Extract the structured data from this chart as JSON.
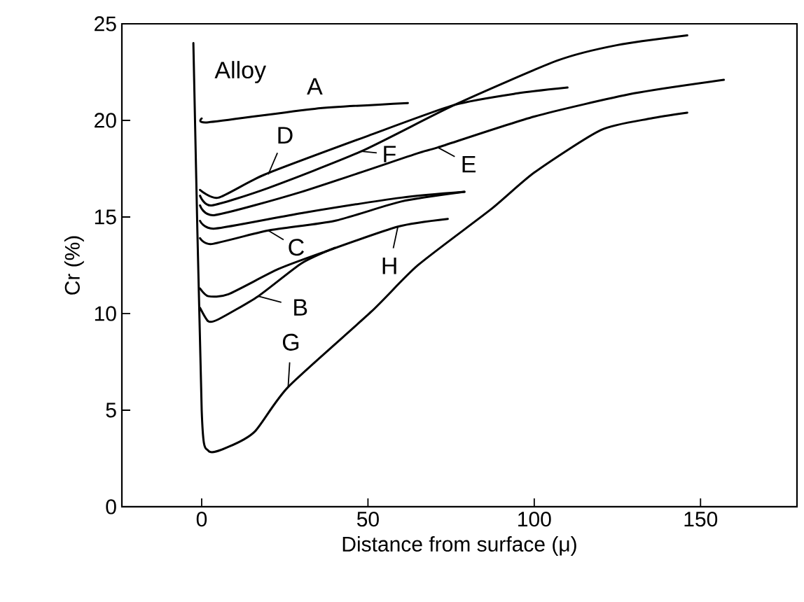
{
  "chart_data": {
    "type": "line",
    "xlabel": "Distance from surface (μ)",
    "ylabel": "Cr (%)",
    "xlim": [
      -24,
      179
    ],
    "ylim": [
      0,
      25
    ],
    "xticks": [
      0,
      50,
      100,
      150
    ],
    "yticks": [
      0,
      5,
      10,
      15,
      20,
      25
    ],
    "marker": "none",
    "line_style": "solid",
    "series": [
      {
        "color": "#000000",
        "x": [
          0,
          2,
          34,
          62
        ],
        "values": [
          20.1,
          19.9,
          20.6,
          20.9
        ]
      },
      {
        "color": "#000000",
        "x": [
          -0.5,
          5,
          19,
          50,
          76,
          95,
          110
        ],
        "values": [
          16.4,
          16.0,
          17.2,
          19.2,
          20.8,
          21.4,
          21.7
        ]
      },
      {
        "color": "#000000",
        "x": [
          -0.5,
          3,
          20,
          48,
          76,
          107,
          125,
          146
        ],
        "values": [
          16.1,
          15.6,
          16.5,
          18.4,
          20.8,
          23.1,
          23.9,
          24.4
        ]
      },
      {
        "color": "#000000",
        "x": [
          -0.5,
          4,
          30,
          65,
          71,
          100,
          130,
          157
        ],
        "values": [
          15.6,
          15.1,
          16.3,
          18.3,
          18.6,
          20.2,
          21.4,
          22.1
        ]
      },
      {
        "color": "#000000",
        "x": [
          -0.5,
          4,
          30,
          60,
          79
        ],
        "values": [
          14.8,
          14.4,
          15.2,
          16.0,
          16.3
        ]
      },
      {
        "color": "#000000",
        "x": [
          -0.5,
          3,
          20,
          40,
          60,
          79
        ],
        "values": [
          13.9,
          13.6,
          14.3,
          14.8,
          15.8,
          16.3
        ]
      },
      {
        "color": "#000000",
        "x": [
          -0.5,
          2,
          8,
          23,
          37,
          59,
          74
        ],
        "values": [
          11.3,
          10.9,
          11.0,
          12.3,
          13.2,
          14.5,
          14.9
        ]
      },
      {
        "color": "#000000",
        "x": [
          -0.5,
          2,
          5,
          17,
          30,
          40
        ],
        "values": [
          10.3,
          9.6,
          9.7,
          10.9,
          12.6,
          13.4
        ]
      },
      {
        "color": "#000000",
        "x": [
          -2.5,
          0,
          2,
          8,
          16,
          26,
          51,
          65,
          87,
          100,
          120,
          135,
          146
        ],
        "values": [
          24.0,
          5.0,
          2.9,
          3.1,
          3.9,
          6.2,
          10.1,
          12.5,
          15.4,
          17.3,
          19.5,
          20.1,
          20.4
        ]
      }
    ],
    "annotations": [
      "Alloy",
      {
        "text": "A",
        "x": 34,
        "y": 20.6
      },
      {
        "text": "D",
        "x": 20,
        "y": 17.2
      },
      {
        "text": "F",
        "x": 48,
        "y": 18.4
      },
      {
        "text": "E",
        "x": 71,
        "y": 18.6
      },
      {
        "text": "C",
        "x": 20,
        "y": 14.3
      },
      {
        "text": "H",
        "x": 59,
        "y": 14.5
      },
      {
        "text": "B",
        "x": 17,
        "y": 10.9
      },
      {
        "text": "G",
        "x": 26,
        "y": 6.2
      }
    ]
  }
}
